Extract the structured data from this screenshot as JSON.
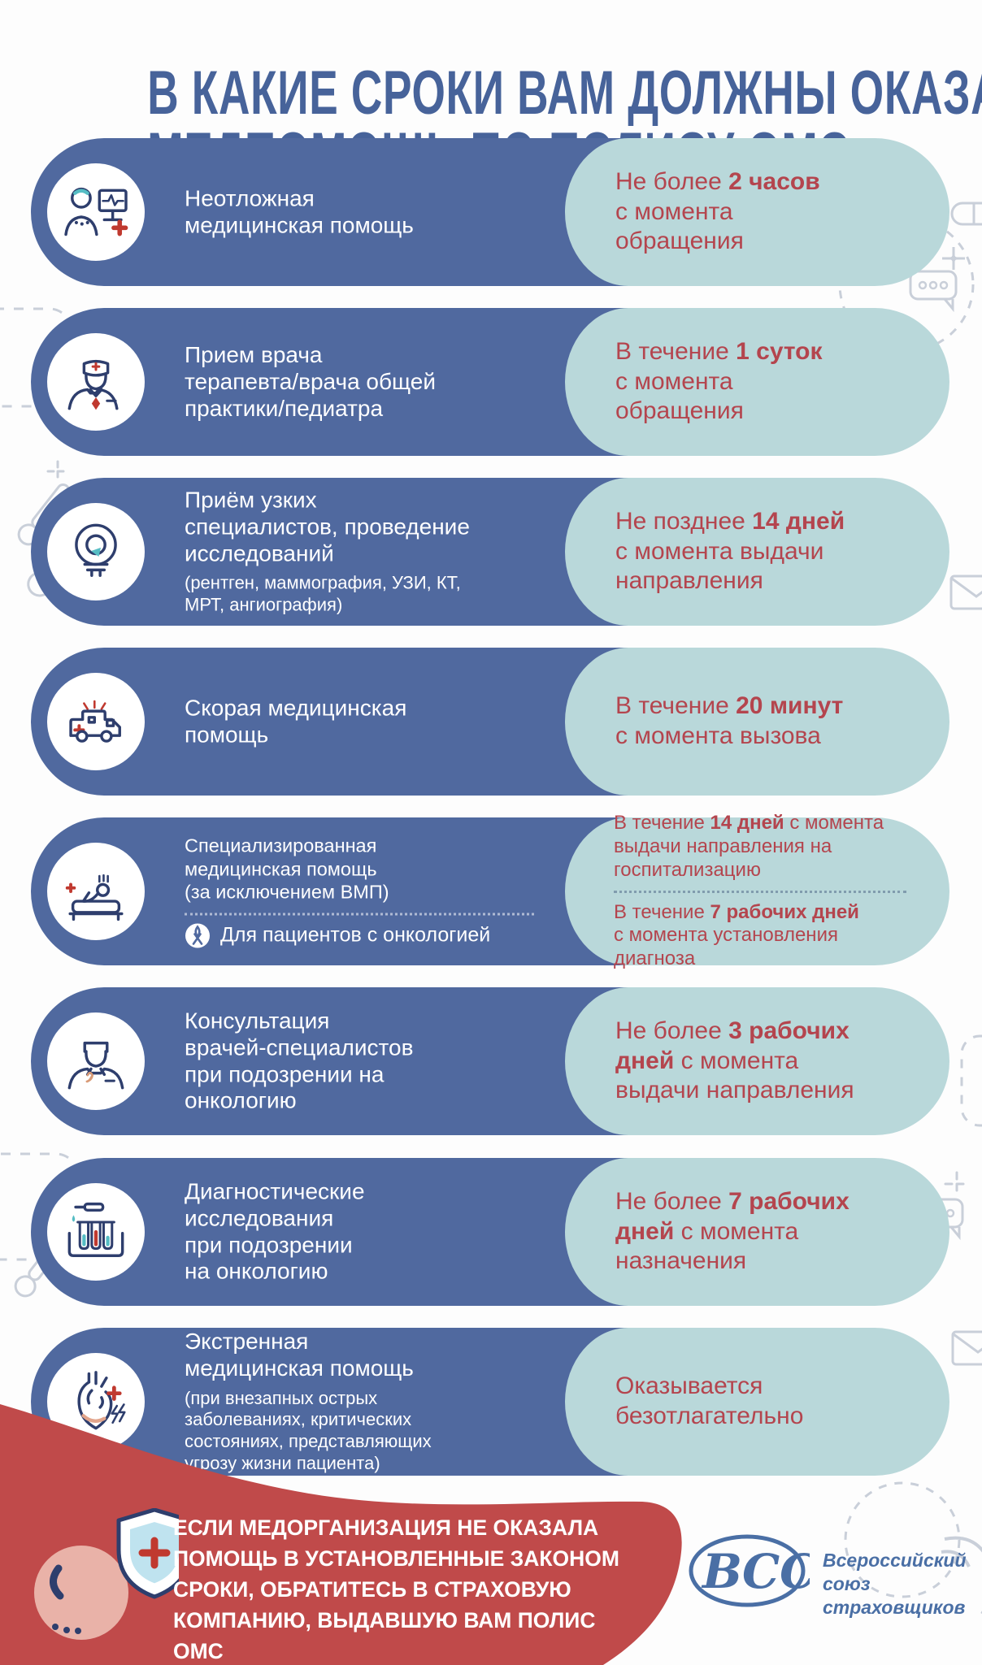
{
  "title": {
    "line1": "В КАКИЕ СРОКИ ВАМ ДОЛЖНЫ ОКАЗАТЬ",
    "line2": "МЕДПОМОЩЬ ПО ПОЛИСУ ОМС"
  },
  "colors": {
    "blue_pill": "#50699f",
    "teal_pill": "#b9d8da",
    "time_red": "#b4454e",
    "title_blue": "#47639a",
    "band_red": "#c04a4a",
    "icon_navy": "#2e3e6d",
    "accent_red": "#c0392f",
    "accent_teal": "#56bdc4",
    "accent_salmon": "#e2a58c",
    "doodle_gray": "#c9cfd9",
    "logo_blue": "#4a6fa5",
    "shield_pink": "#e9b2a8",
    "shield_fill": "#bfe3ef"
  },
  "rows": [
    {
      "icon": "telemedicine-icon",
      "label": "Неотложная\nмедицинская помощь",
      "time": [
        {
          "t": "Не более "
        },
        {
          "t": "2 часов",
          "b": true
        },
        {
          "t": "\nс момента\nобращения"
        }
      ]
    },
    {
      "icon": "therapist-icon",
      "label": "Прием врача\nтерапевта/врача общей\nпрактики/педиатра",
      "time": [
        {
          "t": "В течение "
        },
        {
          "t": "1 суток",
          "b": true
        },
        {
          "t": "\nс момента\nобращения"
        }
      ]
    },
    {
      "icon": "mri-icon",
      "label": "Приём узких\nспециалистов, проведение\nисследований",
      "sublabel": "(рентген, маммография, УЗИ, КТ,\nМРТ, ангиография)",
      "time": [
        {
          "t": "Не позднее "
        },
        {
          "t": "14 дней",
          "b": true
        },
        {
          "t": "\nс момента выдачи\nнаправления"
        }
      ]
    },
    {
      "icon": "ambulance-icon",
      "label": "Скорая медицинская\nпомощь",
      "time": [
        {
          "t": "В течение "
        },
        {
          "t": "20 минут",
          "b": true
        },
        {
          "t": "\nс момента вызова"
        }
      ]
    },
    {
      "icon": "inpatient-icon",
      "label": "Специализированная\nмедицинская помощь\n(за исключением ВМП)",
      "onco": "Для пациентов с онкологией",
      "time1": [
        {
          "t": "В течение "
        },
        {
          "t": "14 дней",
          "b": true
        },
        {
          "t": " с момента\nвыдачи направления на\nгоспитализацию"
        }
      ],
      "time2": [
        {
          "t": "В течение "
        },
        {
          "t": "7 рабочих дней",
          "b": true
        },
        {
          "t": "\nс момента установления\nдиагноза"
        }
      ]
    },
    {
      "icon": "oncologist-icon",
      "label": "Консультация\nврачей-специалистов\nпри подозрении на\nонкологию",
      "time": [
        {
          "t": "Не более "
        },
        {
          "t": "3 рабочих\nдней",
          "b": true
        },
        {
          "t": " с момента\nвыдачи направления"
        }
      ]
    },
    {
      "icon": "test-tubes-icon",
      "label": "Диагностические\nисследования\nпри подозрении\nна онкологию",
      "time": [
        {
          "t": "Не более "
        },
        {
          "t": "7 рабочих\nдней",
          "b": true
        },
        {
          "t": " с момента\nназначения"
        }
      ]
    },
    {
      "icon": "emergency-heart-icon",
      "label": "Экстренная\nмедицинская помощь",
      "sublabel": "(при внезапных острых\nзаболеваниях, критических\nсостояниях, представляющих\nугрозу жизни пациента)",
      "time": [
        {
          "t": "Оказывается\nбезотлагательно"
        }
      ]
    }
  ],
  "footer": {
    "warning": "ЕСЛИ МЕДОРГАНИЗАЦИЯ НЕ ОКАЗАЛА\nПОМОЩЬ В УСТАНОВЛЕННЫЕ ЗАКОНОМ\nСРОКИ, ОБРАТИТЕСЬ В СТРАХОВУЮ\nКОМПАНИЮ, ВЫДАВШУЮ ВАМ ПОЛИС ОМС"
  },
  "logo": {
    "abbr": "ВСС",
    "org": "Всероссийский\nсоюз страховщиков"
  },
  "doodles": [
    "dashed-circle-icon",
    "capsule-icon",
    "thermometer-icon",
    "sparkle-cross-icon",
    "speech-bubble-icon",
    "envelope-icon",
    "dashed-square-icon",
    "phone-icon"
  ]
}
